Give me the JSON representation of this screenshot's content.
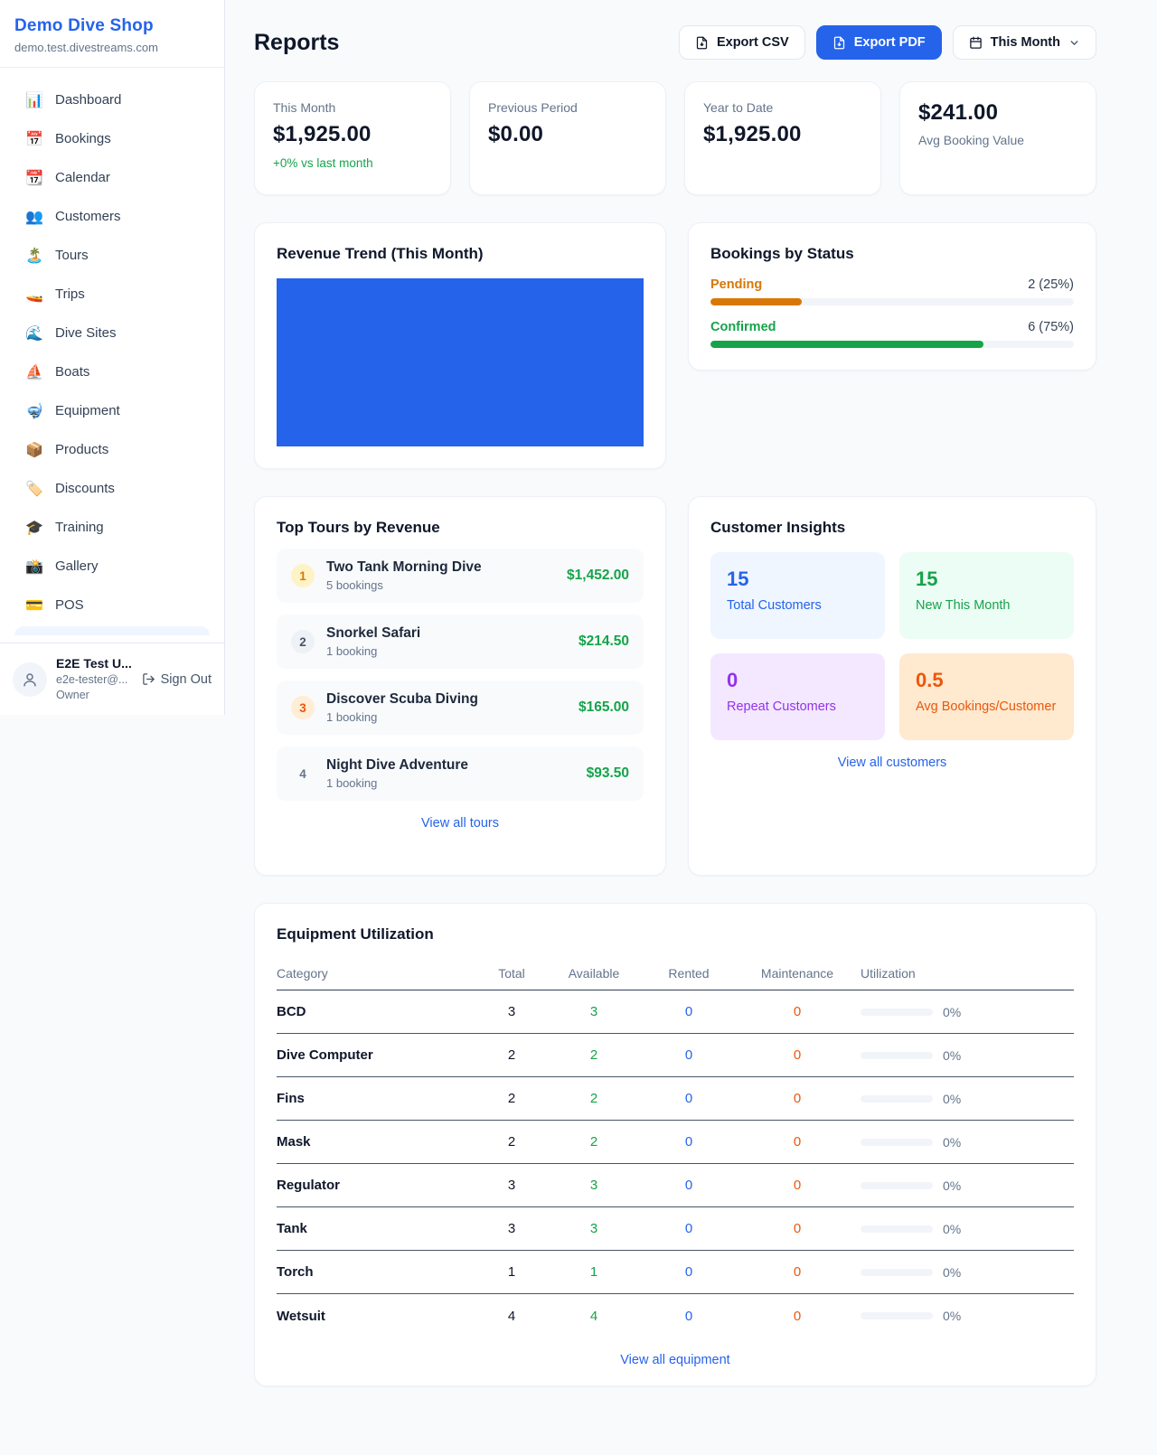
{
  "colors": {
    "brand_blue": "#2563eb",
    "green": "#16a34a",
    "amber": "#d97706",
    "orange": "#ea580c",
    "purple": "#9333ea",
    "page_bg": "#f8fafc"
  },
  "sidebar": {
    "shop_name": "Demo Dive Shop",
    "shop_domain": "demo.test.divestreams.com",
    "nav": [
      {
        "label": "Dashboard",
        "icon": "bar-chart-icon",
        "glyph": "📊"
      },
      {
        "label": "Bookings",
        "icon": "calendar-date-icon",
        "glyph": "📅"
      },
      {
        "label": "Calendar",
        "icon": "tearoff-calendar-icon",
        "glyph": "📆"
      },
      {
        "label": "Customers",
        "icon": "people-icon",
        "glyph": "👥"
      },
      {
        "label": "Tours",
        "icon": "island-icon",
        "glyph": "🏝️"
      },
      {
        "label": "Trips",
        "icon": "speedboat-icon",
        "glyph": "🚤"
      },
      {
        "label": "Dive Sites",
        "icon": "wave-icon",
        "glyph": "🌊"
      },
      {
        "label": "Boats",
        "icon": "sailboat-icon",
        "glyph": "⛵"
      },
      {
        "label": "Equipment",
        "icon": "diving-mask-icon",
        "glyph": "🤿"
      },
      {
        "label": "Products",
        "icon": "package-icon",
        "glyph": "📦"
      },
      {
        "label": "Discounts",
        "icon": "tag-icon",
        "glyph": "🏷️"
      },
      {
        "label": "Training",
        "icon": "graduation-cap-icon",
        "glyph": "🎓"
      },
      {
        "label": "Gallery",
        "icon": "camera-icon",
        "glyph": "📸"
      },
      {
        "label": "POS",
        "icon": "credit-card-icon",
        "glyph": "💳"
      }
    ],
    "user": {
      "name": "E2E Test U...",
      "email": "e2e-tester@...",
      "role": "Owner",
      "sign_out_label": "Sign Out"
    }
  },
  "header": {
    "title": "Reports",
    "export_csv_label": "Export CSV",
    "export_pdf_label": "Export PDF",
    "period_label": "This Month"
  },
  "stats": {
    "this_month": {
      "label": "This Month",
      "value": "$1,925.00",
      "delta": "+0% vs last month"
    },
    "previous_period": {
      "label": "Previous Period",
      "value": "$0.00"
    },
    "year_to_date": {
      "label": "Year to Date",
      "value": "$1,925.00"
    },
    "avg_booking": {
      "value": "$241.00",
      "label": "Avg Booking Value"
    }
  },
  "revenue_trend": {
    "title": "Revenue Trend (This Month)",
    "chart": {
      "type": "bar",
      "fill_percent": 100,
      "bar_color": "#2563eb",
      "note": "single full-width solid bar, no axes or labels visible"
    }
  },
  "bookings_by_status": {
    "title": "Bookings by Status",
    "chart": {
      "type": "bar",
      "categories": [
        "Pending",
        "Confirmed"
      ],
      "values": [
        2,
        6
      ],
      "percents": [
        25,
        75
      ]
    },
    "items": [
      {
        "label": "Pending",
        "value_text": "2 (25%)",
        "percent": 25,
        "color": "#d97706"
      },
      {
        "label": "Confirmed",
        "value_text": "6 (75%)",
        "percent": 75,
        "color": "#16a34a"
      }
    ]
  },
  "top_tours": {
    "title": "Top Tours by Revenue",
    "items": [
      {
        "rank": "1",
        "name": "Two Tank Morning Dive",
        "bookings": "5 bookings",
        "revenue": "$1,452.00"
      },
      {
        "rank": "2",
        "name": "Snorkel Safari",
        "bookings": "1 booking",
        "revenue": "$214.50"
      },
      {
        "rank": "3",
        "name": "Discover Scuba Diving",
        "bookings": "1 booking",
        "revenue": "$165.00"
      },
      {
        "rank": "4",
        "name": "Night Dive Adventure",
        "bookings": "1 booking",
        "revenue": "$93.50"
      }
    ],
    "view_all_label": "View all tours"
  },
  "customer_insights": {
    "title": "Customer Insights",
    "tiles": [
      {
        "value": "15",
        "label": "Total Customers",
        "bg": "#eff6ff",
        "color": "#2563eb"
      },
      {
        "value": "15",
        "label": "New This Month",
        "bg": "#ecfdf5",
        "color": "#16a34a"
      },
      {
        "value": "0",
        "label": "Repeat Customers",
        "bg": "#f3e8ff",
        "color": "#9333ea"
      },
      {
        "value": "0.5",
        "label": "Avg Bookings/Customer",
        "bg": "#ffe9cf",
        "color": "#ea580c"
      }
    ],
    "view_all_label": "View all customers"
  },
  "equipment_utilization": {
    "title": "Equipment Utilization",
    "columns": {
      "category": "Category",
      "total": "Total",
      "available": "Available",
      "rented": "Rented",
      "maintenance": "Maintenance",
      "utilization": "Utilization"
    },
    "rows": [
      {
        "category": "BCD",
        "total": "3",
        "available": "3",
        "rented": "0",
        "maintenance": "0",
        "utilization": "0%",
        "utilization_percent": 0
      },
      {
        "category": "Dive Computer",
        "total": "2",
        "available": "2",
        "rented": "0",
        "maintenance": "0",
        "utilization": "0%",
        "utilization_percent": 0
      },
      {
        "category": "Fins",
        "total": "2",
        "available": "2",
        "rented": "0",
        "maintenance": "0",
        "utilization": "0%",
        "utilization_percent": 0
      },
      {
        "category": "Mask",
        "total": "2",
        "available": "2",
        "rented": "0",
        "maintenance": "0",
        "utilization": "0%",
        "utilization_percent": 0
      },
      {
        "category": "Regulator",
        "total": "3",
        "available": "3",
        "rented": "0",
        "maintenance": "0",
        "utilization": "0%",
        "utilization_percent": 0
      },
      {
        "category": "Tank",
        "total": "3",
        "available": "3",
        "rented": "0",
        "maintenance": "0",
        "utilization": "0%",
        "utilization_percent": 0
      },
      {
        "category": "Torch",
        "total": "1",
        "available": "1",
        "rented": "0",
        "maintenance": "0",
        "utilization": "0%",
        "utilization_percent": 0
      },
      {
        "category": "Wetsuit",
        "total": "4",
        "available": "4",
        "rented": "0",
        "maintenance": "0",
        "utilization": "0%",
        "utilization_percent": 0
      }
    ],
    "view_all_label": "View all equipment"
  }
}
